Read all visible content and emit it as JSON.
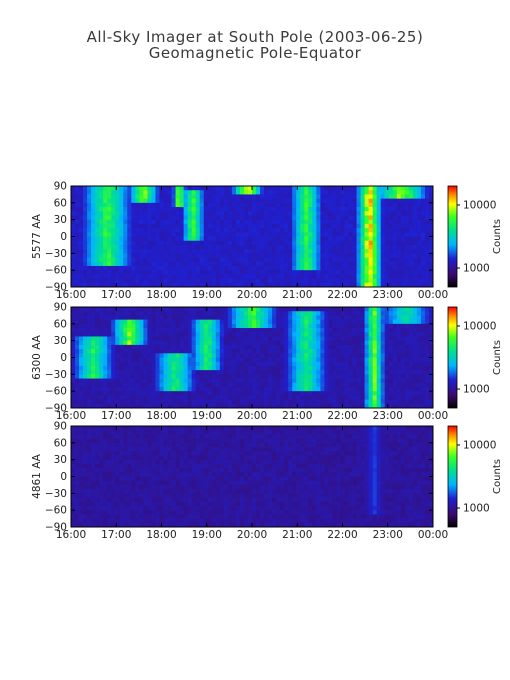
{
  "title_line1": "All-Sky Imager at South Pole (2003-06-25)",
  "title_line2": "Geomagnetic Pole-Equator",
  "chart_data": [
    {
      "type": "heatmap",
      "ylabel": "5577 AA",
      "x_ticks": [
        "16:00",
        "17:00",
        "18:00",
        "19:00",
        "20:00",
        "21:00",
        "22:00",
        "23:00",
        "00:00"
      ],
      "y_ticks": [
        "90",
        "60",
        "30",
        "0",
        "-30",
        "-60",
        "-90"
      ],
      "ylim": [
        -90,
        90
      ],
      "x_range": [
        "16:00",
        "00:00"
      ],
      "colorbar": {
        "label": "Counts",
        "ticks": [
          "10000",
          "1000"
        ],
        "scale": "log",
        "range": [
          500,
          20000
        ]
      },
      "background_level": 0.26,
      "features": [
        {
          "t": 16.8,
          "y0": -50,
          "y1": 90,
          "v": 0.72,
          "w": 0.55
        },
        {
          "t": 17.6,
          "y0": 60,
          "y1": 90,
          "v": 0.82,
          "w": 0.35
        },
        {
          "t": 18.4,
          "y0": 55,
          "y1": 90,
          "v": 0.9,
          "w": 0.15
        },
        {
          "t": 18.7,
          "y0": -10,
          "y1": 80,
          "v": 0.75,
          "w": 0.25
        },
        {
          "t": 19.9,
          "y0": 75,
          "y1": 90,
          "v": 0.95,
          "w": 0.35
        },
        {
          "t": 21.2,
          "y0": -60,
          "y1": 90,
          "v": 0.72,
          "w": 0.35
        },
        {
          "t": 22.6,
          "y0": -90,
          "y1": 90,
          "v": 0.97,
          "w": 0.3
        },
        {
          "t": 23.3,
          "y0": 70,
          "y1": 90,
          "v": 0.85,
          "w": 0.6
        }
      ]
    },
    {
      "type": "heatmap",
      "ylabel": "6300 AA",
      "x_ticks": [
        "16:00",
        "17:00",
        "18:00",
        "19:00",
        "20:00",
        "21:00",
        "22:00",
        "23:00",
        "00:00"
      ],
      "y_ticks": [
        "90",
        "60",
        "30",
        "0",
        "-30",
        "-60",
        "-90"
      ],
      "ylim": [
        -90,
        90
      ],
      "x_range": [
        "16:00",
        "00:00"
      ],
      "colorbar": {
        "label": "Counts",
        "ticks": [
          "10000",
          "1000"
        ],
        "scale": "log",
        "range": [
          500,
          20000
        ]
      },
      "background_level": 0.22,
      "features": [
        {
          "t": 16.5,
          "y0": -40,
          "y1": 40,
          "v": 0.68,
          "w": 0.5
        },
        {
          "t": 17.3,
          "y0": 20,
          "y1": 70,
          "v": 0.8,
          "w": 0.45
        },
        {
          "t": 18.3,
          "y0": -60,
          "y1": 10,
          "v": 0.66,
          "w": 0.5
        },
        {
          "t": 19.0,
          "y0": -20,
          "y1": 70,
          "v": 0.68,
          "w": 0.4
        },
        {
          "t": 20.0,
          "y0": 50,
          "y1": 90,
          "v": 0.75,
          "w": 0.6
        },
        {
          "t": 21.2,
          "y0": -60,
          "y1": 80,
          "v": 0.65,
          "w": 0.5
        },
        {
          "t": 22.7,
          "y0": -90,
          "y1": 90,
          "v": 0.78,
          "w": 0.25
        },
        {
          "t": 23.4,
          "y0": 60,
          "y1": 90,
          "v": 0.6,
          "w": 0.6
        }
      ]
    },
    {
      "type": "heatmap",
      "ylabel": "4861 AA",
      "x_ticks": [
        "16:00",
        "17:00",
        "18:00",
        "19:00",
        "20:00",
        "21:00",
        "22:00",
        "23:00",
        "00:00"
      ],
      "y_ticks": [
        "90",
        "60",
        "30",
        "0",
        "-30",
        "-60",
        "-90"
      ],
      "ylim": [
        -90,
        90
      ],
      "x_range": [
        "16:00",
        "00:00"
      ],
      "colorbar": {
        "label": "Counts",
        "ticks": [
          "10000",
          "1000"
        ],
        "scale": "log",
        "range": [
          500,
          20000
        ]
      },
      "background_level": 0.2,
      "features": [
        {
          "t": 22.7,
          "y0": -70,
          "y1": 90,
          "v": 0.32,
          "w": 0.2
        },
        {
          "t": 20.0,
          "y0": 35,
          "y1": 40,
          "v": 0.3,
          "w": 4.0
        }
      ]
    }
  ]
}
